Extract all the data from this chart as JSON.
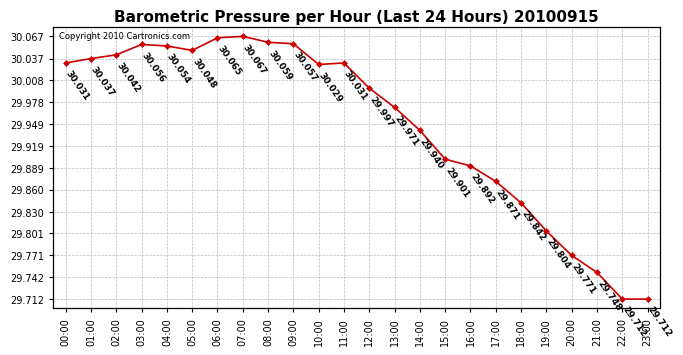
{
  "title": "Barometric Pressure per Hour (Last 24 Hours) 20100915",
  "copyright": "Copyright 2010 Cartronics.com",
  "hours": [
    "00:00",
    "01:00",
    "02:00",
    "03:00",
    "04:00",
    "05:00",
    "06:00",
    "07:00",
    "08:00",
    "09:00",
    "10:00",
    "11:00",
    "12:00",
    "13:00",
    "14:00",
    "15:00",
    "16:00",
    "17:00",
    "18:00",
    "19:00",
    "20:00",
    "21:00",
    "22:00",
    "23:00"
  ],
  "values": [
    30.031,
    30.037,
    30.042,
    30.056,
    30.054,
    30.048,
    30.065,
    30.067,
    30.059,
    30.057,
    30.029,
    30.031,
    29.997,
    29.971,
    29.94,
    29.901,
    29.892,
    29.871,
    29.842,
    29.804,
    29.771,
    29.748,
    29.712,
    29.712
  ],
  "ylim_min": 29.7,
  "ylim_max": 30.08,
  "yticks": [
    29.712,
    29.742,
    29.771,
    29.801,
    29.83,
    29.86,
    29.889,
    29.919,
    29.949,
    29.978,
    30.008,
    30.037,
    30.067
  ],
  "line_color": "#cc0000",
  "marker_color": "#cc0000",
  "marker_face": "#cc0000",
  "bg_color": "#ffffff",
  "grid_color": "#bbbbbb",
  "title_fontsize": 11,
  "label_fontsize": 7,
  "annot_fontsize": 6.5,
  "annot_rotation": -55,
  "copyright_fontsize": 6
}
